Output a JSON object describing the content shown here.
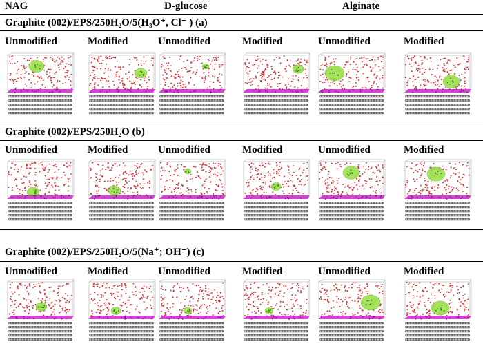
{
  "header": {
    "col1": "NAG",
    "col2": "D-glucose",
    "col3": "Alginate"
  },
  "sections": [
    {
      "title": "Graphite (002)/EPS/250H₂O/5(H₃O⁺, Cl⁻ ) (a)",
      "labels": [
        "Unmodified",
        "Modified",
        "Unmodified",
        "Modified",
        "Unmodified",
        "Modified"
      ],
      "panels": [
        "NAG unmodified snapshot",
        "NAG modified snapshot",
        "D-glucose unmodified snapshot",
        "D-glucose modified snapshot",
        "Alginate unmodified snapshot",
        "Alginate modified snapshot"
      ]
    },
    {
      "title": "Graphite (002)/EPS/250H₂O (b)",
      "labels": [
        "Unmodified",
        "Modified",
        "Unmodified",
        "Modified",
        "Unmodified",
        "Modified"
      ],
      "panels": [
        "NAG unmodified snapshot",
        "NAG modified snapshot",
        "D-glucose unmodified snapshot",
        "D-glucose modified snapshot",
        "Alginate unmodified snapshot",
        "Alginate modified snapshot"
      ]
    },
    {
      "title": "Graphite (002)/EPS/250H₂O/5(Na⁺; OH⁻) (c)",
      "labels": [
        "Unmodified",
        "Modified",
        "Unmodified",
        "Modified",
        "Unmodified",
        "Modified"
      ],
      "panels": [
        "NAG unmodified snapshot",
        "NAG modified snapshot",
        "D-glucose unmodified snapshot",
        "D-glucose modified snapshot",
        "Alginate unmodified snapshot",
        "Alginate modified snapshot"
      ]
    }
  ],
  "colors": {
    "water_oxygen": "#d42a2a",
    "water_hydrogen": "#e8e8e8",
    "eps_surface": "#9be04a",
    "interface": "#d025d0",
    "graphite": "#6a6a6a",
    "graphite_light": "#bdbdbd",
    "box": "#9a9a9a"
  }
}
